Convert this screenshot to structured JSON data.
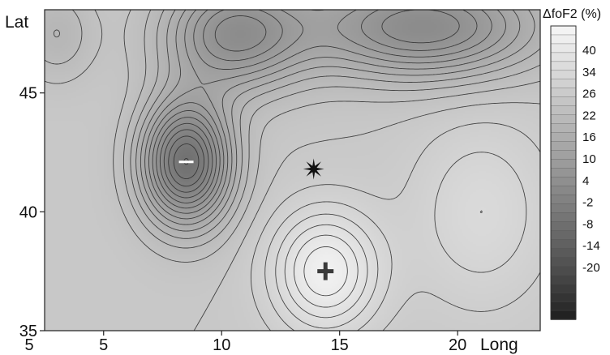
{
  "chart_data": {
    "type": "heatmap",
    "title": "",
    "xlabel": "Long",
    "ylabel": "Lat",
    "xlim": [
      2.5,
      23.5
    ],
    "ylim": [
      35,
      48.5
    ],
    "x_ticks": [
      {
        "value": 5,
        "label": "5"
      },
      {
        "value": 10,
        "label": "10"
      },
      {
        "value": 15,
        "label": "15"
      },
      {
        "value": 20,
        "label": "20"
      }
    ],
    "x_first_tick_label": "5",
    "y_ticks": [
      {
        "value": 35,
        "label": "35"
      },
      {
        "value": 40,
        "label": "40"
      },
      {
        "value": 45,
        "label": "45"
      }
    ],
    "colorbar": {
      "title": "ΔfoF2 (%)",
      "tick_labels": [
        "40",
        "34",
        "26",
        "22",
        "16",
        "10",
        "4",
        "-2",
        "-8",
        "-14",
        "-20"
      ],
      "range": [
        -20,
        46
      ],
      "colors": {
        "low": "#1c1c1c",
        "high": "#f6f6f6"
      }
    },
    "field_features": [
      {
        "kind": "minimum",
        "long": 8.5,
        "lat": 42.1,
        "value": -2,
        "marker": "white dash"
      },
      {
        "kind": "station",
        "long": 13.9,
        "lat": 41.8,
        "marker": "star"
      },
      {
        "kind": "station",
        "long": 14.4,
        "lat": 37.5,
        "marker": "cross"
      },
      {
        "kind": "maximum",
        "long": 14.4,
        "lat": 37.5,
        "value": 44
      },
      {
        "kind": "background",
        "long": 3.5,
        "lat": 41.5,
        "value": 30
      },
      {
        "kind": "high",
        "long": 20.5,
        "lat": 40.0,
        "value": 34
      },
      {
        "kind": "low",
        "long": 17.5,
        "lat": 47.5,
        "value": 4
      },
      {
        "kind": "low",
        "long": 11.5,
        "lat": 47.0,
        "value": 4
      }
    ]
  }
}
